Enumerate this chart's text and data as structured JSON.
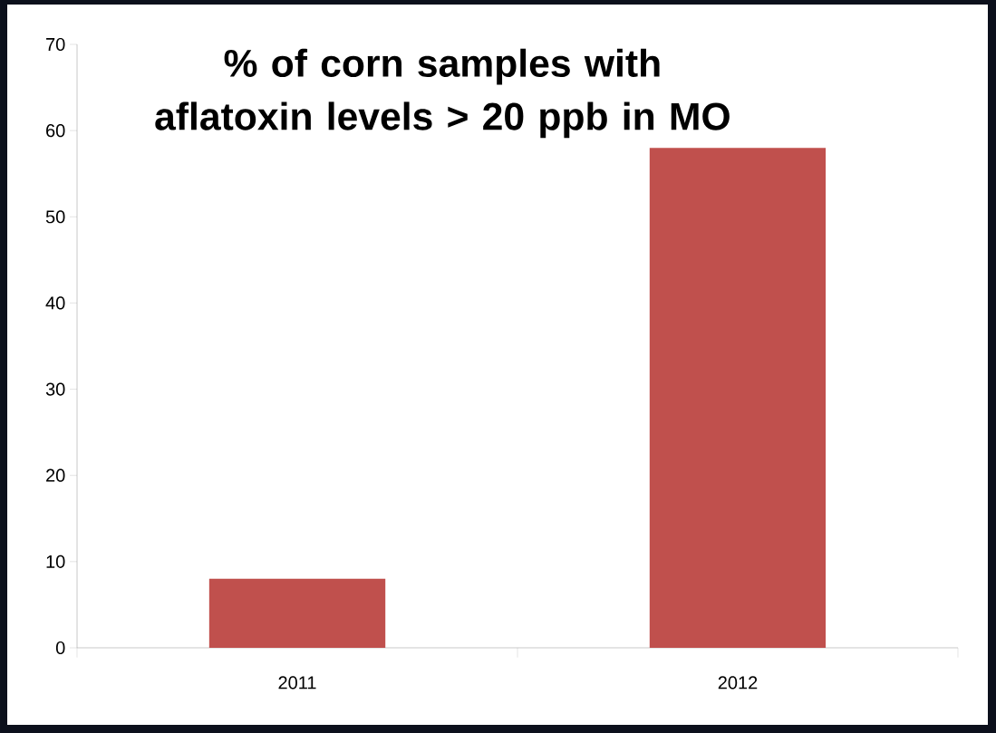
{
  "chart_data": {
    "type": "bar",
    "title": "% of corn samples with aflatoxin levels > 20 ppb in MO",
    "categories": [
      "2011",
      "2012"
    ],
    "values": [
      8,
      58
    ],
    "color": "#c0504d",
    "ylim": [
      0,
      70
    ],
    "yticks": [
      0,
      10,
      20,
      30,
      40,
      50,
      60,
      70
    ],
    "grid": false
  }
}
